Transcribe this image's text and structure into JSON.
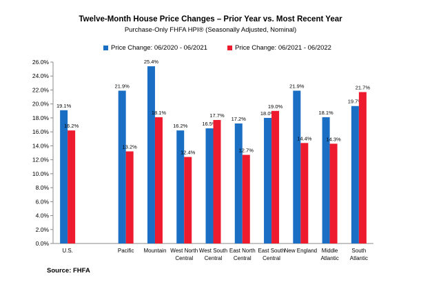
{
  "chart_data": {
    "type": "bar",
    "title": "Twelve-Month House Price Changes – Prior Year vs. Most Recent Year",
    "subtitle": "Purchase-Only FHFA HPI® (Seasonally Adjusted, Nominal)",
    "categories": [
      [
        "U.S."
      ],
      [
        ""
      ],
      [
        "Pacific"
      ],
      [
        "Mountain"
      ],
      [
        "West North",
        "Central"
      ],
      [
        "West South",
        "Central"
      ],
      [
        "East North",
        "Central"
      ],
      [
        "East South",
        "Central"
      ],
      [
        "New England"
      ],
      [
        "Middle",
        "Atlantic"
      ],
      [
        "South",
        "Atlantic"
      ]
    ],
    "series": [
      {
        "name": "Price Change:  06/2020 - 06/2021",
        "color": "#1a6fc4",
        "values": [
          19.1,
          null,
          21.9,
          25.4,
          16.2,
          16.5,
          17.2,
          18.0,
          21.9,
          18.1,
          19.7
        ]
      },
      {
        "name": "Price Change:  06/2021 - 06/2022",
        "color": "#ee1b2f",
        "values": [
          16.2,
          null,
          13.2,
          18.1,
          12.4,
          17.7,
          12.7,
          19.0,
          14.4,
          14.3,
          21.7
        ]
      }
    ],
    "ylim": [
      0,
      26
    ],
    "yticks": [
      "0.0%",
      "2.0%",
      "4.0%",
      "6.0%",
      "8.0%",
      "10.0%",
      "12.0%",
      "14.0%",
      "16.0%",
      "18.0%",
      "20.0%",
      "22.0%",
      "24.0%",
      "26.0%"
    ],
    "ytick_values": [
      0,
      2,
      4,
      6,
      8,
      10,
      12,
      14,
      16,
      18,
      20,
      22,
      24,
      26
    ],
    "grid": false,
    "legend": "top"
  },
  "source": "Source: FHFA"
}
